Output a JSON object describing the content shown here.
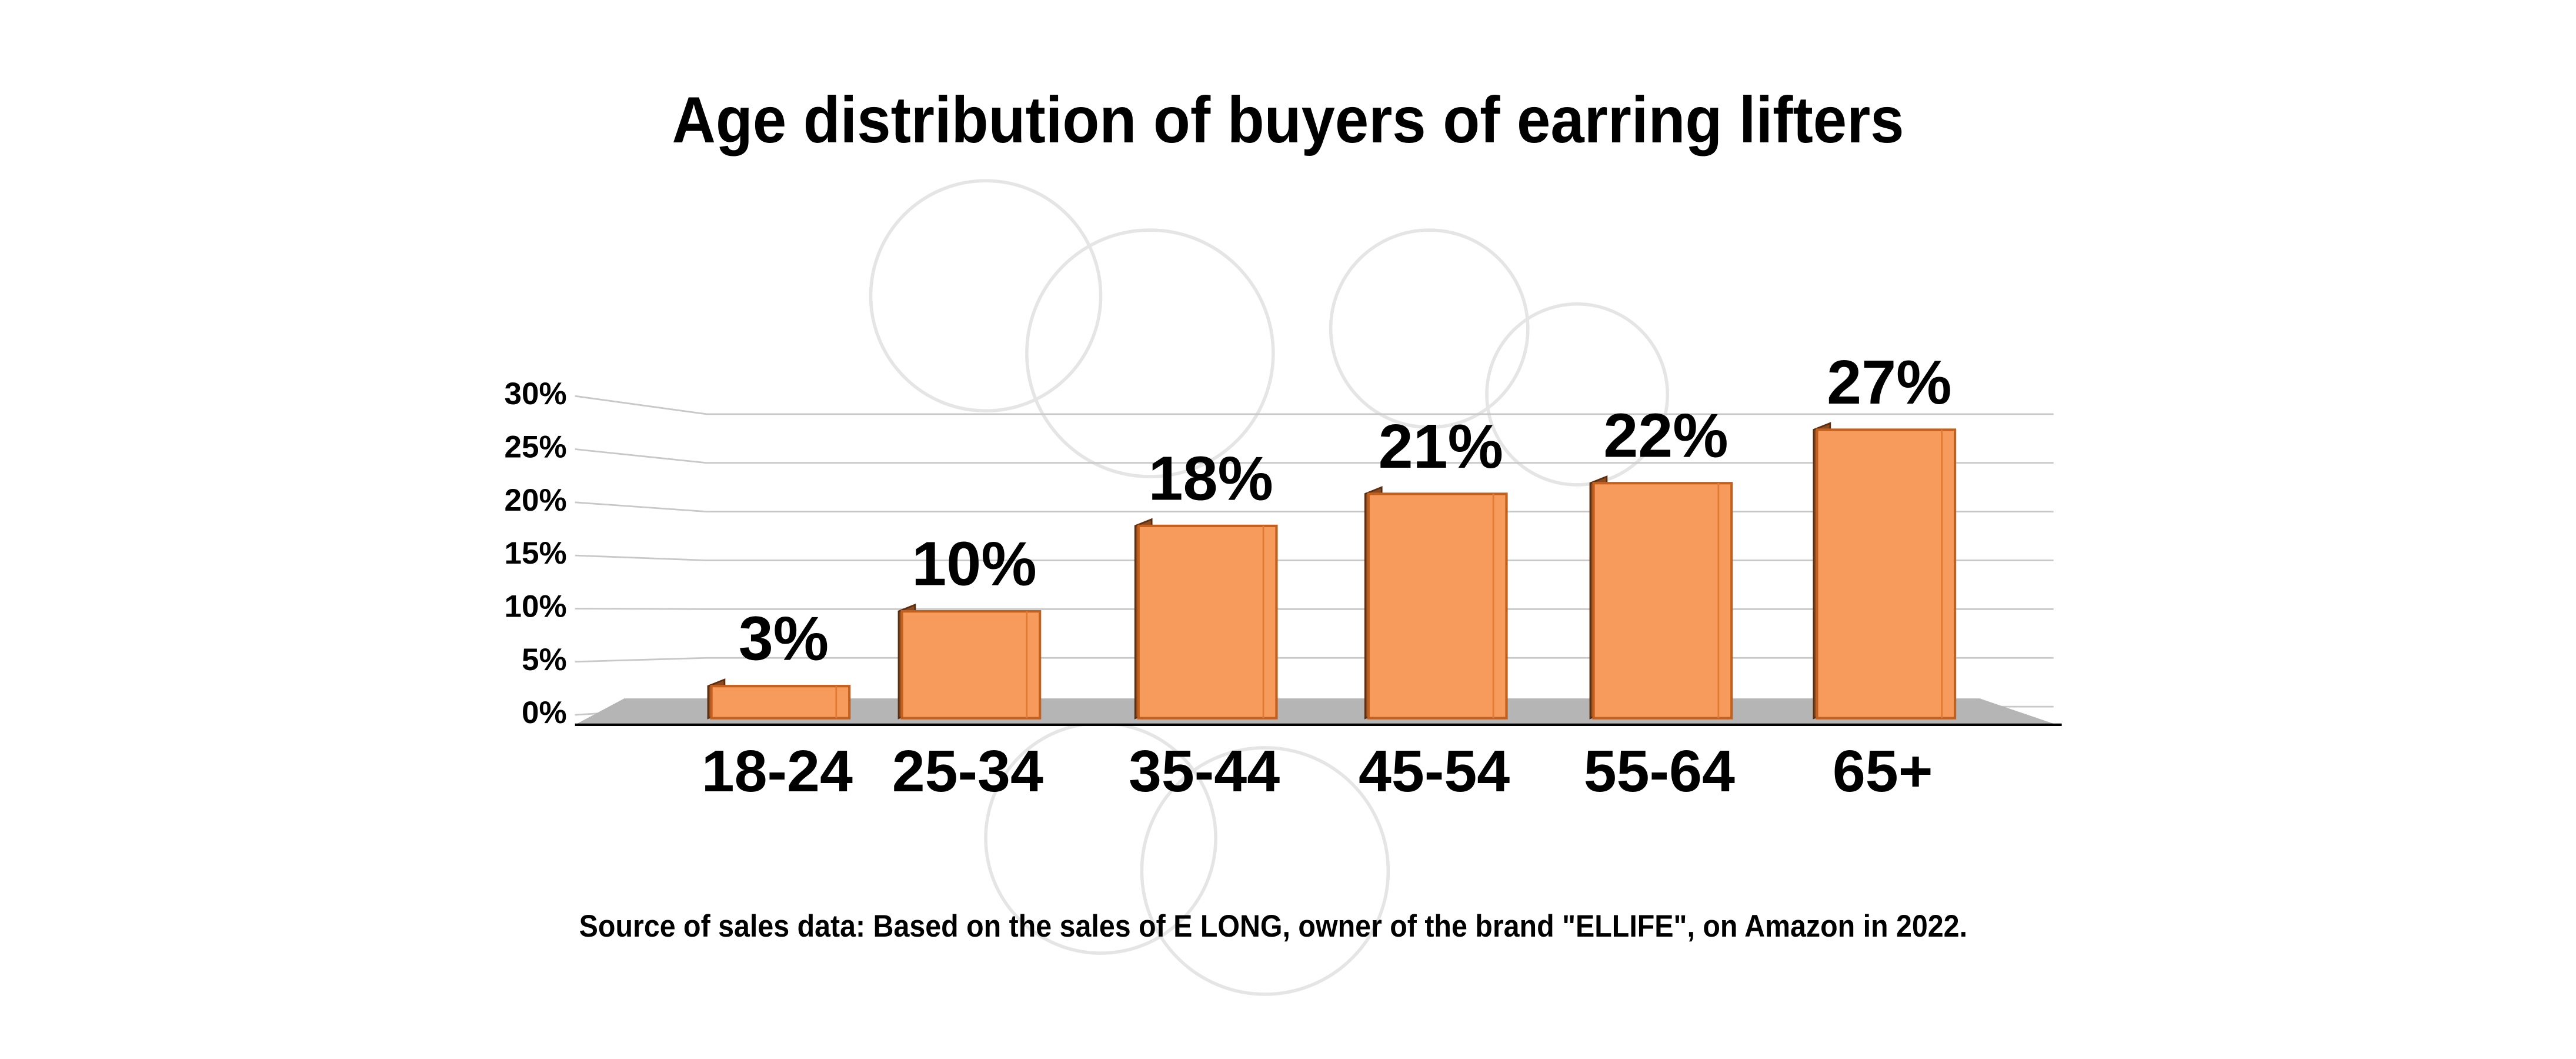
{
  "chart_data": {
    "type": "bar",
    "title": "Age distribution of buyers of earring lifters",
    "categories": [
      "18-24",
      "25-34",
      "35-44",
      "45-54",
      "55-64",
      "65+"
    ],
    "values": [
      3,
      10,
      18,
      21,
      22,
      27
    ],
    "value_labels": [
      "3%",
      "10%",
      "18%",
      "21%",
      "22%",
      "27%"
    ],
    "color": "#f79b5c",
    "ylim": [
      0,
      30
    ],
    "yticks": [
      {
        "value": 0,
        "label": "0%"
      },
      {
        "value": 5,
        "label": "5%"
      },
      {
        "value": 10,
        "label": "10%"
      },
      {
        "value": 15,
        "label": "15%"
      },
      {
        "value": 20,
        "label": "20%"
      },
      {
        "value": 25,
        "label": "25%"
      },
      {
        "value": 30,
        "label": "30%"
      }
    ],
    "grid": true,
    "source": "Source of sales data: Based on the sales of E LONG, owner of the brand \"ELLIFE\", on Amazon in 2022."
  }
}
